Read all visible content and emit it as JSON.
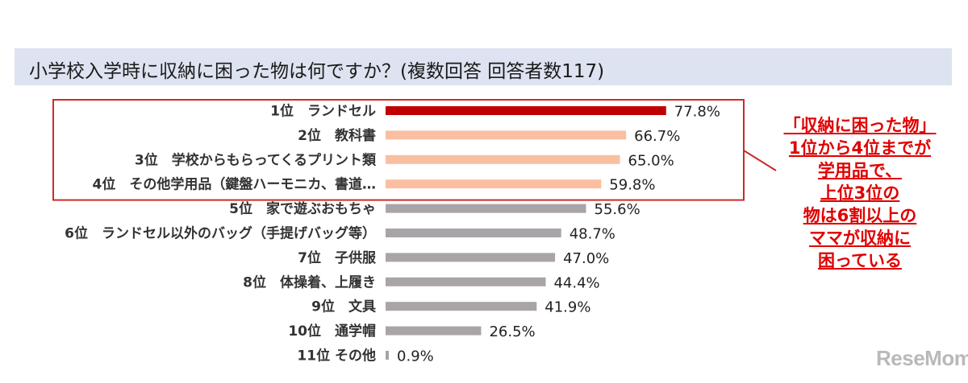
{
  "chart_data": {
    "type": "bar",
    "orientation": "horizontal",
    "title": "小学校入学時に収納に困った物は何ですか？(複数回答 回答者数117)",
    "categories": [
      "1位　ランドセル",
      "2位　教科書",
      "3位　学校からもらってくるプリント類",
      "4位　その他学用品（鍵盤ハーモニカ、書道…",
      "5位　家で遊ぶおもちゃ",
      "6位　ランドセル以外のバッグ（手提げバッグ等）",
      "7位　子供服",
      "8位　体操着、上履き",
      "9位　文具",
      "10位　通学帽",
      "11位 その他"
    ],
    "values": [
      77.8,
      66.7,
      65.0,
      59.8,
      55.6,
      48.7,
      47.0,
      44.4,
      41.9,
      26.5,
      0.9
    ],
    "value_labels": [
      "77.8%",
      "66.7%",
      "65.0%",
      "59.8%",
      "55.6%",
      "48.7%",
      "47.0%",
      "44.4%",
      "41.9%",
      "26.5%",
      "0.9%"
    ],
    "colors": [
      "#c00000",
      "#f9bfa0",
      "#f9bfa0",
      "#f9bfa0",
      "#a9a4a8",
      "#a9a4a8",
      "#a9a4a8",
      "#a9a4a8",
      "#a9a4a8",
      "#a9a4a8",
      "#a9a4a8"
    ],
    "highlight_box_color": "#cc2a2a",
    "xlim": [
      0,
      100
    ],
    "grid": false,
    "legend": "none"
  },
  "annotation": {
    "lines": [
      "「収納に困った物」",
      "1位から4位までが",
      "学用品で、",
      "上位3位の",
      "物は6割以上の",
      "ママが収納に",
      "困っている"
    ],
    "color": "#e00000"
  },
  "watermark": "ReseMom"
}
